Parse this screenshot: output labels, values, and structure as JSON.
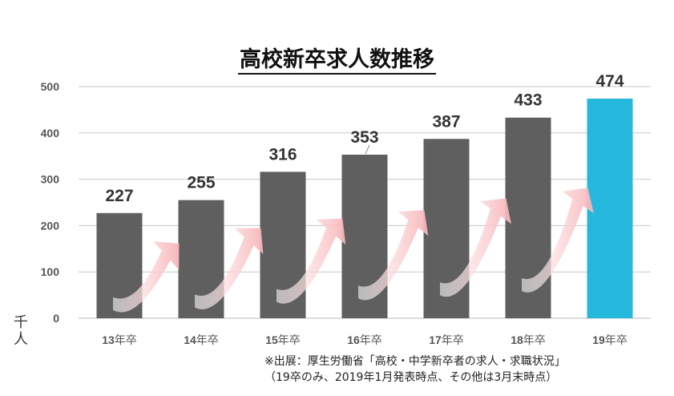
{
  "chart_data": {
    "type": "bar",
    "title": "高校新卒求人数推移",
    "ylabel": "千人",
    "ylim": [
      0,
      500
    ],
    "yticks": [
      0,
      100,
      200,
      300,
      400,
      500
    ],
    "grid": true,
    "categories": [
      "13年卒",
      "14年卒",
      "15年卒",
      "16年卒",
      "17年卒",
      "18年卒",
      "19年卒"
    ],
    "values": [
      227,
      255,
      316,
      353,
      387,
      433,
      474
    ],
    "data_labels": [
      "227",
      "255",
      "316",
      "353",
      "387",
      "433",
      "474"
    ],
    "colors": {
      "bar": "#5f5f5f",
      "highlight_bar": "#25b8dc",
      "arrow": "#f7b4b8",
      "grid": "#c8c8c8"
    },
    "highlight_index": 6,
    "annotations": "pink-curved-arrows-between-bars"
  },
  "footnote": {
    "line1": "※出展：厚生労働省「高校・中学新卒者の求人・求職状況」",
    "line2": "（19卒のみ、2019年1月発表時点、その他は3月末時点）"
  }
}
